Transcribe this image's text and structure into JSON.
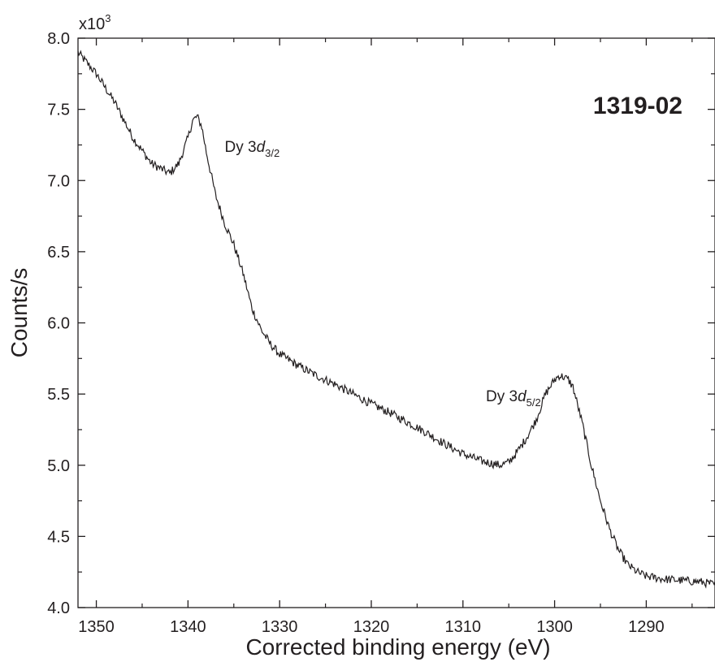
{
  "chart_data": {
    "type": "line",
    "title": "",
    "sample_label": "1319-02",
    "xlabel": "Corrected binding energy (eV)",
    "ylabel": "Counts/s",
    "y_multiplier": "x10",
    "y_multiplier_exp": "3",
    "xlim": [
      1352,
      1282.5
    ],
    "ylim": [
      4.0,
      8.0
    ],
    "x_reversed": true,
    "grid": false,
    "x_ticks": [
      1350,
      1340,
      1330,
      1320,
      1310,
      1300,
      1290
    ],
    "y_ticks": [
      "4.0",
      "4.5",
      "5.0",
      "5.5",
      "6.0",
      "6.5",
      "7.0",
      "7.5",
      "8.0"
    ],
    "annotations": [
      {
        "text": "Dy 3",
        "italic": "d",
        "sub": "3/2",
        "x": 1336,
        "y": 7.2
      },
      {
        "text": "Dy 3",
        "italic": "d",
        "sub": "5/2",
        "x": 1307.5,
        "y": 5.45
      }
    ],
    "series": [
      {
        "x": [
          1352,
          1350,
          1348,
          1346,
          1344,
          1342,
          1341,
          1340,
          1339.5,
          1339,
          1338.5,
          1338,
          1337,
          1336,
          1335,
          1334,
          1333,
          1332,
          1331,
          1330,
          1328,
          1326,
          1324,
          1322,
          1320,
          1318,
          1316,
          1314,
          1312,
          1310,
          1308,
          1306,
          1305,
          1304,
          1303,
          1302,
          1301,
          1300,
          1299.5,
          1299,
          1298.5,
          1298,
          1297,
          1296,
          1295,
          1294,
          1293,
          1292,
          1291,
          1290,
          1288,
          1286,
          1284,
          1282.5
        ],
        "y": [
          7.9,
          7.75,
          7.55,
          7.3,
          7.12,
          7.05,
          7.12,
          7.3,
          7.42,
          7.45,
          7.38,
          7.2,
          6.9,
          6.7,
          6.55,
          6.35,
          6.1,
          5.95,
          5.85,
          5.78,
          5.7,
          5.63,
          5.57,
          5.5,
          5.43,
          5.37,
          5.3,
          5.23,
          5.15,
          5.08,
          5.03,
          5.0,
          5.02,
          5.1,
          5.2,
          5.32,
          5.5,
          5.6,
          5.63,
          5.62,
          5.6,
          5.55,
          5.3,
          5.0,
          4.75,
          4.55,
          4.4,
          4.3,
          4.25,
          4.22,
          4.2,
          4.19,
          4.18,
          4.16
        ]
      }
    ]
  }
}
